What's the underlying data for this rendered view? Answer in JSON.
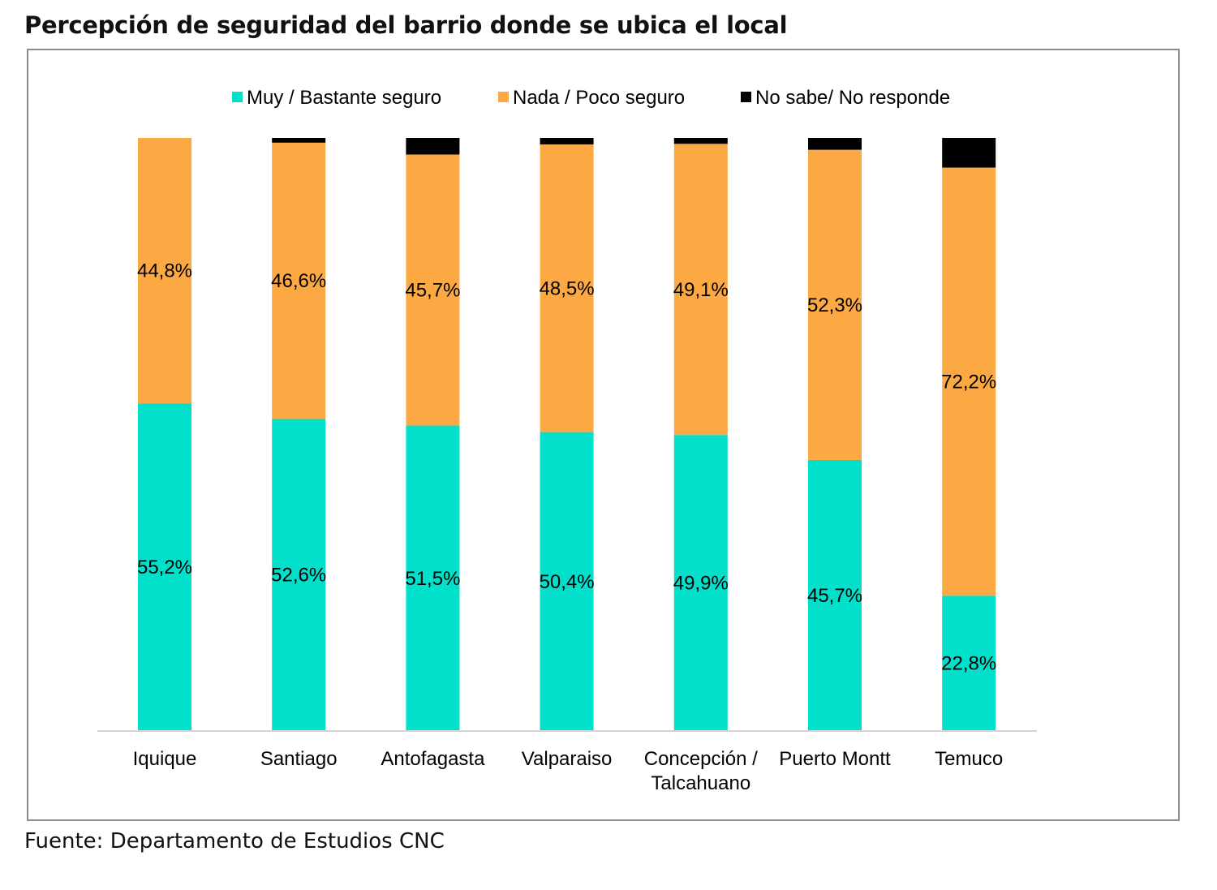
{
  "title": "Percepción de seguridad del barrio donde se ubica el local",
  "source": "Fuente: Departamento de Estudios CNC",
  "chart_data": {
    "type": "bar",
    "stacked": true,
    "percent_stacked": true,
    "categories": [
      [
        "Iquique"
      ],
      [
        "Santiago"
      ],
      [
        "Antofagasta"
      ],
      [
        "Valparaiso"
      ],
      [
        "Concepción /",
        "Talcahuano"
      ],
      [
        "Puerto Montt"
      ],
      [
        "Temuco"
      ]
    ],
    "series": [
      {
        "name": "Muy / Bastante seguro",
        "color": "#00e0cb",
        "values": [
          55.2,
          52.6,
          51.5,
          50.4,
          49.9,
          45.7,
          22.8
        ],
        "labels": [
          "55,2%",
          "52,6%",
          "51,5%",
          "50,4%",
          "49,9%",
          "45,7%",
          "22,8%"
        ]
      },
      {
        "name": "Nada / Poco seguro",
        "color": "#fca944",
        "values": [
          44.8,
          46.6,
          45.7,
          48.5,
          49.1,
          52.3,
          72.2
        ],
        "labels": [
          "44,8%",
          "46,6%",
          "45,7%",
          "48,5%",
          "49,1%",
          "52,3%",
          "72,2%"
        ]
      },
      {
        "name": "No sabe/ No responde",
        "color": "#000000",
        "values": [
          0.0,
          0.8,
          2.8,
          1.1,
          1.0,
          2.0,
          5.0
        ],
        "labels": [
          "",
          "",
          "",
          "",
          "",
          "",
          ""
        ]
      }
    ],
    "ylim": [
      0,
      100
    ],
    "legend_position": "top",
    "grid": false
  }
}
